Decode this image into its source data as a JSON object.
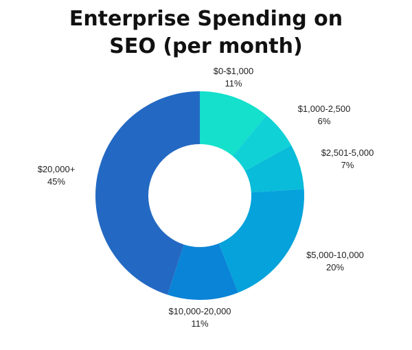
{
  "chart_data": {
    "type": "pie",
    "donut": true,
    "title_lines": [
      "Enterprise Spending on",
      "SEO (per month)"
    ],
    "slices": [
      {
        "label": "$0-$1,000",
        "value": 11,
        "value_label": "11%",
        "color": "#14E0CB"
      },
      {
        "label": "$1,000-2,500",
        "value": 6,
        "value_label": "6%",
        "color": "#10D2D6"
      },
      {
        "label": "$2,501-5,000",
        "value": 7,
        "value_label": "7%",
        "color": "#09BCD9"
      },
      {
        "label": "$5,000-10,000",
        "value": 20,
        "value_label": "20%",
        "color": "#05A2DC"
      },
      {
        "label": "$10,000-20,000",
        "value": 11,
        "value_label": "11%",
        "color": "#0A84D6"
      },
      {
        "label": "$20,000+",
        "value": 45,
        "value_label": "45%",
        "color": "#2369C3"
      }
    ]
  }
}
